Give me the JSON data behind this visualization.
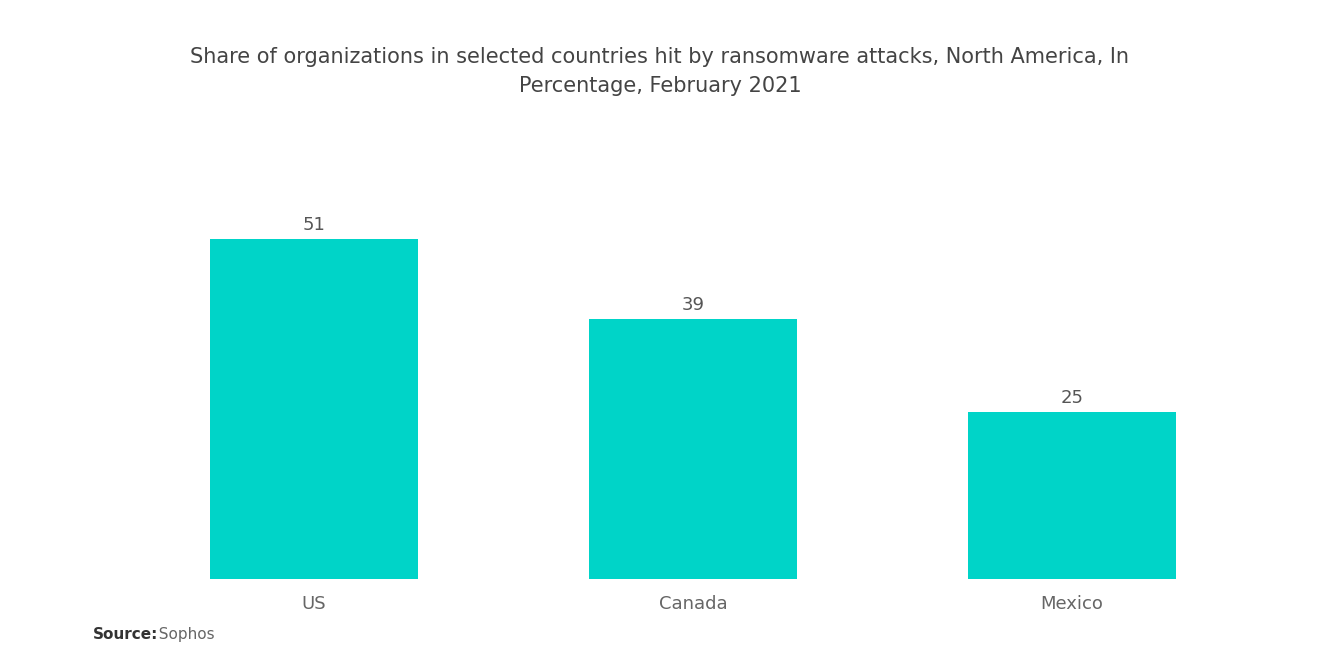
{
  "title": "Share of organizations in selected countries hit by ransomware attacks, North America, In\nPercentage, February 2021",
  "categories": [
    "US",
    "Canada",
    "Mexico"
  ],
  "values": [
    51,
    39,
    25
  ],
  "bar_color": "#00D4C8",
  "background_color": "#ffffff",
  "value_labels": [
    "51",
    "39",
    "25"
  ],
  "source_bold": "Source:",
  "source_normal": "  Sophos",
  "title_fontsize": 15,
  "label_fontsize": 13,
  "value_fontsize": 13,
  "source_fontsize": 11,
  "ylim": [
    0,
    62
  ],
  "bar_width": 0.55,
  "xlim": [
    -0.55,
    2.55
  ]
}
